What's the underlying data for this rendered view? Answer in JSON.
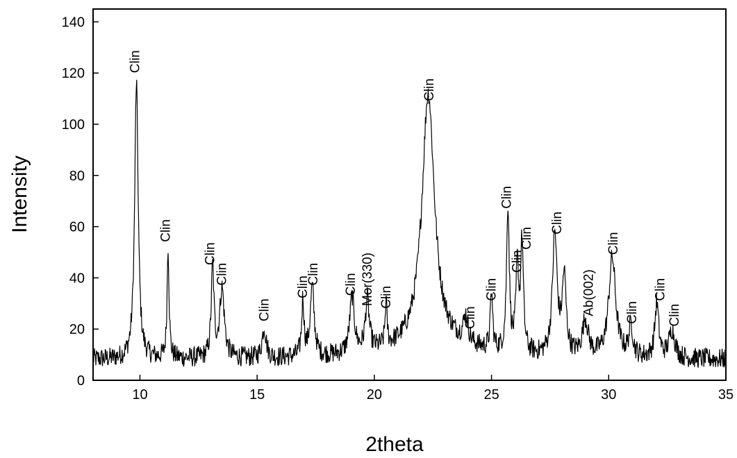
{
  "chart_data": {
    "type": "line",
    "title": "",
    "xlabel": "2theta",
    "ylabel": "Intensity",
    "xlim": [
      8,
      35
    ],
    "ylim": [
      0,
      145
    ],
    "x_ticks": [
      10,
      15,
      20,
      25,
      30,
      35
    ],
    "y_ticks": [
      0,
      20,
      40,
      60,
      80,
      100,
      120,
      140
    ],
    "grid": false,
    "legend": "none",
    "line_color": "#000000",
    "baseline": 8,
    "noise_amplitude": 4,
    "peaks": [
      {
        "x": 9.85,
        "y": 116,
        "width": 0.09
      },
      {
        "x": 11.2,
        "y": 52,
        "width": 0.05
      },
      {
        "x": 13.1,
        "y": 43,
        "width": 0.07
      },
      {
        "x": 13.5,
        "y": 35,
        "width": 0.12
      },
      {
        "x": 15.3,
        "y": 20,
        "width": 0.1
      },
      {
        "x": 16.95,
        "y": 30,
        "width": 0.06
      },
      {
        "x": 17.35,
        "y": 35,
        "width": 0.1
      },
      {
        "x": 19.05,
        "y": 30,
        "width": 0.12
      },
      {
        "x": 19.7,
        "y": 28,
        "width": 0.1
      },
      {
        "x": 20.5,
        "y": 25,
        "width": 0.05
      },
      {
        "x": 22.3,
        "y": 106,
        "width": 0.32
      },
      {
        "x": 23.9,
        "y": 18,
        "width": 0.12
      },
      {
        "x": 25.0,
        "y": 30,
        "width": 0.06
      },
      {
        "x": 25.7,
        "y": 65,
        "width": 0.07
      },
      {
        "x": 26.1,
        "y": 40,
        "width": 0.07
      },
      {
        "x": 26.3,
        "y": 51,
        "width": 0.07
      },
      {
        "x": 27.7,
        "y": 55,
        "width": 0.12
      },
      {
        "x": 28.1,
        "y": 38,
        "width": 0.1
      },
      {
        "x": 29.0,
        "y": 22,
        "width": 0.15
      },
      {
        "x": 30.15,
        "y": 47,
        "width": 0.18
      },
      {
        "x": 30.95,
        "y": 20,
        "width": 0.1
      },
      {
        "x": 32.05,
        "y": 29,
        "width": 0.1
      },
      {
        "x": 32.7,
        "y": 19,
        "width": 0.15
      }
    ],
    "annotations": [
      {
        "text": "Clin",
        "x": 9.8,
        "y": 120
      },
      {
        "text": "Clin",
        "x": 11.1,
        "y": 54
      },
      {
        "text": "Clin",
        "x": 13.0,
        "y": 45
      },
      {
        "text": "Clin",
        "x": 13.5,
        "y": 37
      },
      {
        "text": "Clin",
        "x": 15.3,
        "y": 23
      },
      {
        "text": "Clin",
        "x": 16.95,
        "y": 32
      },
      {
        "text": "Clin",
        "x": 17.4,
        "y": 37
      },
      {
        "text": "Clin",
        "x": 19.0,
        "y": 33
      },
      {
        "text": "Mor(330)",
        "x": 19.7,
        "y": 29
      },
      {
        "text": "Clin",
        "x": 20.5,
        "y": 28
      },
      {
        "text": "Clin",
        "x": 22.35,
        "y": 109
      },
      {
        "text": "Clin",
        "x": 24.1,
        "y": 20
      },
      {
        "text": "Clin",
        "x": 25.0,
        "y": 31
      },
      {
        "text": "Clin",
        "x": 25.65,
        "y": 67
      },
      {
        "text": "Clin",
        "x": 26.1,
        "y": 42
      },
      {
        "text": "Clin",
        "x": 26.5,
        "y": 51
      },
      {
        "text": "Clin",
        "x": 27.8,
        "y": 57
      },
      {
        "text": "Ab(002)",
        "x": 29.15,
        "y": 25
      },
      {
        "text": "Clin",
        "x": 30.2,
        "y": 49
      },
      {
        "text": "Clin",
        "x": 31.0,
        "y": 22
      },
      {
        "text": "Clin",
        "x": 32.2,
        "y": 31
      },
      {
        "text": "Clin",
        "x": 32.8,
        "y": 21
      }
    ]
  }
}
